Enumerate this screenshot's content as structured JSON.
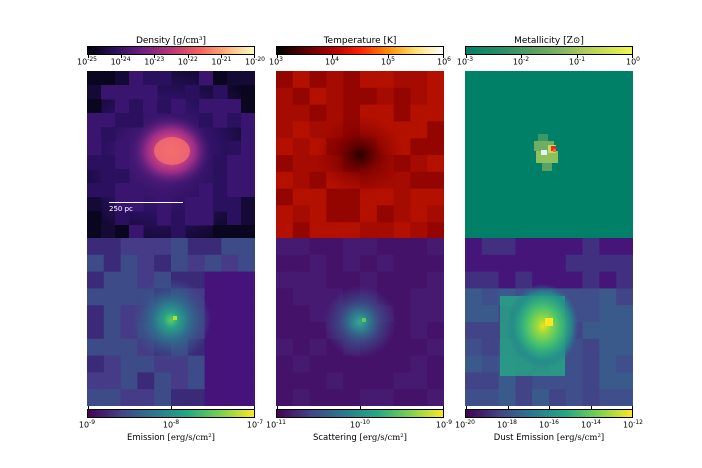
{
  "top_row": [
    {
      "key": "density",
      "title": "Density",
      "unit": "[g/cm³]",
      "ticks": [
        {
          "b": "10",
          "e": "-25"
        },
        {
          "b": "10",
          "e": "-24"
        },
        {
          "b": "10",
          "e": "-23"
        },
        {
          "b": "10",
          "e": "-22"
        },
        {
          "b": "10",
          "e": "-21"
        },
        {
          "b": "10",
          "e": "-20"
        }
      ]
    },
    {
      "key": "temperature",
      "title": "Temperature [K]",
      "unit": "",
      "ticks": [
        {
          "b": "10",
          "e": "3"
        },
        {
          "b": "10",
          "e": "4"
        },
        {
          "b": "10",
          "e": "5"
        },
        {
          "b": "10",
          "e": "6"
        }
      ]
    },
    {
      "key": "metallicity",
      "title": "Metallicity",
      "unit": "[Z⊙]",
      "ticks": [
        {
          "b": "10",
          "e": "-3"
        },
        {
          "b": "10",
          "e": "-2"
        },
        {
          "b": "10",
          "e": "-1"
        },
        {
          "b": "10",
          "e": "0"
        }
      ]
    }
  ],
  "bottom_row": [
    {
      "key": "emission",
      "label": "Emission",
      "unit": "[erg/s/cm²]",
      "ticks": [
        {
          "b": "10",
          "e": "-9"
        },
        {
          "b": "10",
          "e": "-8"
        },
        {
          "b": "10",
          "e": "-7"
        }
      ]
    },
    {
      "key": "scattering",
      "label": "Scattering",
      "unit": "[erg/s/cm²]",
      "ticks": [
        {
          "b": "10",
          "e": "-11"
        },
        {
          "b": "10",
          "e": "-10"
        },
        {
          "b": "10",
          "e": "-9"
        }
      ]
    },
    {
      "key": "dust",
      "label": "Dust Emission",
      "unit": "[erg/s/cm²]",
      "ticks": [
        {
          "b": "10",
          "e": "-20"
        },
        {
          "b": "10",
          "e": "-18"
        },
        {
          "b": "10",
          "e": "-16"
        },
        {
          "b": "10",
          "e": "-14"
        },
        {
          "b": "10",
          "e": "-12"
        }
      ]
    }
  ],
  "scale_bar_label": "250 pc",
  "colors": {
    "density_cmap": "#000004,#3b0f70,#8c2981,#de4968,#fe9f6d,#fcfdbf",
    "temperature_cmap": "#000000,#800000,#ff0000,#ff8000,#ffff00,#ffffff",
    "metallicity_cmap": "#008066,#4da066,#a0c060,#e8f050",
    "viridis_cmap": "#440154,#3b528b,#21918c,#5ec962,#fde725"
  }
}
